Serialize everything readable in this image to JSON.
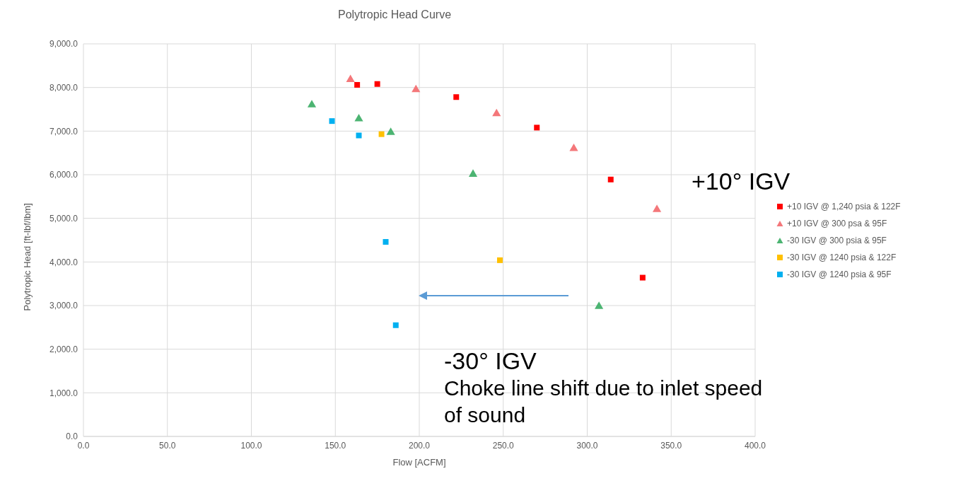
{
  "chart_data": {
    "type": "scatter",
    "title": "Polytropic Head Curve",
    "xlabel": "Flow [ACFM]",
    "ylabel": "Polytropic Head [ft-lbf/lbm]",
    "xlim": [
      0,
      400
    ],
    "xticks": [
      {
        "value": 0,
        "label": "0.0"
      },
      {
        "value": 50,
        "label": "50.0"
      },
      {
        "value": 100,
        "label": "100.0"
      },
      {
        "value": 150,
        "label": "150.0"
      },
      {
        "value": 200,
        "label": "200.0"
      },
      {
        "value": 250,
        "label": "250.0"
      },
      {
        "value": 300,
        "label": "300.0"
      },
      {
        "value": 350,
        "label": "350.0"
      },
      {
        "value": 400,
        "label": "400.0"
      }
    ],
    "ylim": [
      0,
      9000
    ],
    "yticks": [
      {
        "value": 0,
        "label": "0.0"
      },
      {
        "value": 1000,
        "label": "1,000.0"
      },
      {
        "value": 2000,
        "label": "2,000.0"
      },
      {
        "value": 3000,
        "label": "3,000.0"
      },
      {
        "value": 4000,
        "label": "4,000.0"
      },
      {
        "value": 5000,
        "label": "5,000.0"
      },
      {
        "value": 6000,
        "label": "6,000.0"
      },
      {
        "value": 7000,
        "label": "7,000.0"
      },
      {
        "value": 8000,
        "label": "8,000.0"
      },
      {
        "value": 9000,
        "label": "9,000.0"
      }
    ],
    "grid": true,
    "legend": "right",
    "series": [
      {
        "name": "+10 IGV @ 1,240 psia & 122F",
        "color": "#ff0000",
        "marker": "square",
        "x": [
          163,
          175,
          222,
          270,
          314,
          333
        ],
        "values": [
          8060,
          8080,
          7780,
          7080,
          5890,
          3640
        ]
      },
      {
        "name": "+10 IGV @ 300 psa & 95F",
        "color": "#f4777a",
        "marker": "triangle",
        "x": [
          159,
          198,
          246,
          292,
          341.5
        ],
        "values": [
          8180,
          7950,
          7400,
          6600,
          5200
        ]
      },
      {
        "name": "-30 IGV @ 300 psia & 95F",
        "color": "#4cb472",
        "marker": "triangle",
        "x": [
          136,
          164,
          183,
          232,
          307
        ],
        "values": [
          7600,
          7280,
          6970,
          6010,
          2980
        ]
      },
      {
        "name": "-30 IGV @ 1240 psia & 122F",
        "color": "#ffc000",
        "marker": "square",
        "x": [
          177.5,
          248
        ],
        "values": [
          6930,
          4040
        ]
      },
      {
        "name": "-30 IGV @ 1240 psia & 95F",
        "color": "#00b0f0",
        "marker": "square",
        "x": [
          148,
          164,
          180,
          186
        ],
        "values": [
          7230,
          6900,
          4460,
          2550
        ]
      }
    ],
    "annotations": [
      "+10° IGV",
      "-30° IGV",
      "Choke line shift due to inlet speed of sound"
    ]
  }
}
